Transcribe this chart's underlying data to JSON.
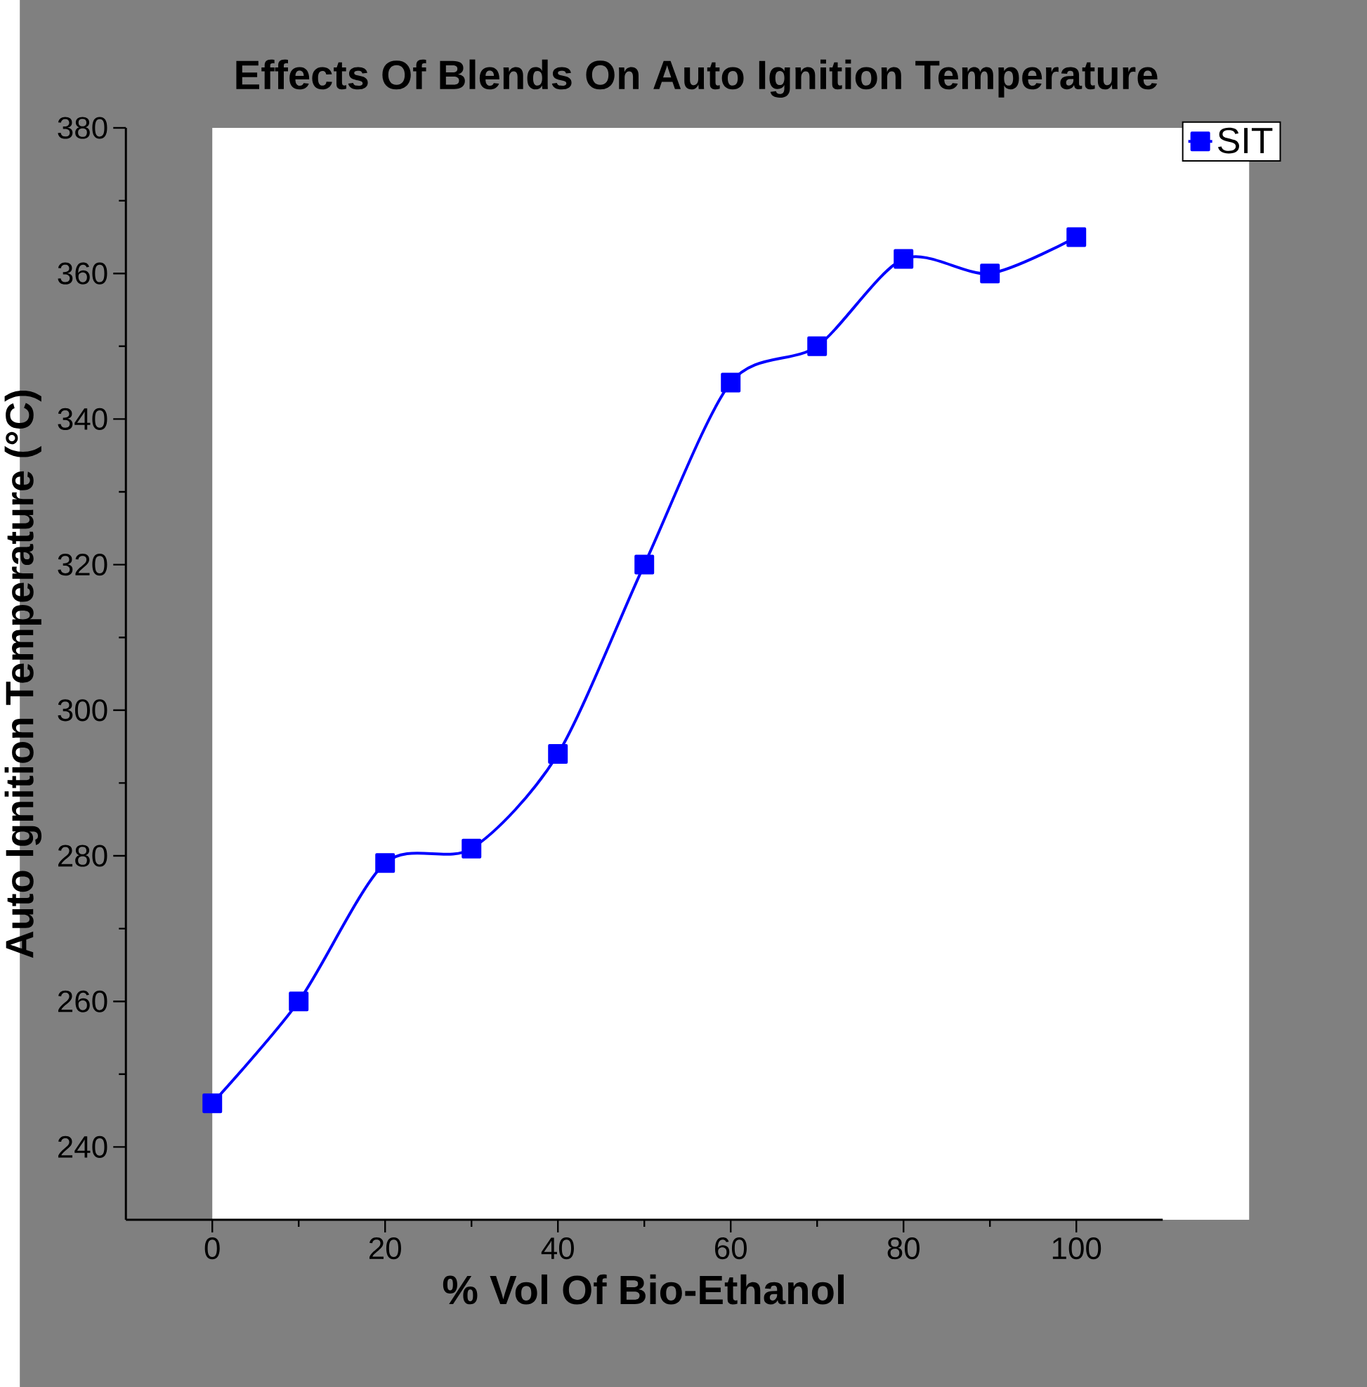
{
  "chart_data": {
    "type": "line",
    "title": "Effects Of Blends On Auto Ignition Temperature",
    "xlabel": "% Vol Of Bio-Ethanol",
    "ylabel": "Auto Ignition Temperature (°C)",
    "x": [
      0,
      10,
      20,
      30,
      40,
      50,
      60,
      70,
      80,
      90,
      100
    ],
    "series": [
      {
        "name": "SIT",
        "color": "#0000ff",
        "values": [
          246,
          260,
          279,
          281,
          294,
          320,
          345,
          350,
          362,
          360,
          365
        ]
      }
    ],
    "xlim": [
      -10,
      110
    ],
    "xticks": [
      0,
      20,
      40,
      60,
      80,
      100
    ],
    "ylim": [
      230,
      380
    ],
    "yticks": [
      240,
      260,
      280,
      300,
      320,
      340,
      360,
      380
    ],
    "marker": "square",
    "line_style": "solid",
    "legend": "top right",
    "grid": false
  }
}
